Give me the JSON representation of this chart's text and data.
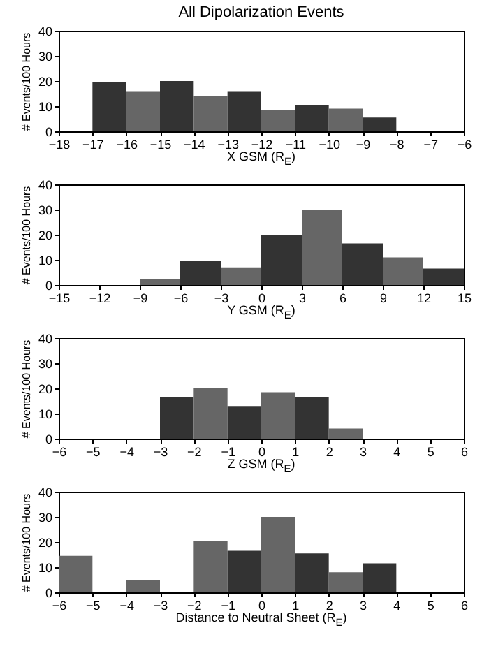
{
  "chart_data": [
    {
      "type": "histogram",
      "title": "All Dipolarization Events",
      "xlabel": "X GSM (R$_{E}$)",
      "ylabel": "# Events/100 Hours",
      "bins": [
        -17,
        -16,
        -15,
        -14,
        -13,
        -12,
        -11,
        -10,
        -9,
        -8
      ],
      "values": [
        19.5,
        16,
        20,
        14,
        16,
        8.5,
        10.5,
        9,
        5.5
      ],
      "colors": [
        "#333333",
        "#666666",
        "#333333",
        "#666666",
        "#333333",
        "#666666",
        "#333333",
        "#666666",
        "#333333"
      ],
      "xlim": [
        -18,
        -6
      ],
      "xticks": [
        -18,
        -17,
        -16,
        -15,
        -14,
        -13,
        -12,
        -11,
        -10,
        -9,
        -8,
        -7,
        -6
      ],
      "ylim": [
        0,
        40
      ],
      "yticks": [
        0,
        10,
        20,
        30,
        40
      ]
    },
    {
      "type": "histogram",
      "xlabel": "Y GSM (R$_{E}$)",
      "ylabel": "# Events/100 Hours",
      "bins": [
        -9,
        -6,
        -3,
        0,
        3,
        6,
        9,
        12,
        15
      ],
      "values": [
        2.5,
        9.5,
        7,
        20,
        30,
        16.5,
        11,
        6.5
      ],
      "colors": [
        "#666666",
        "#333333",
        "#666666",
        "#333333",
        "#666666",
        "#333333",
        "#666666",
        "#333333"
      ],
      "xlim": [
        -15,
        15
      ],
      "xticks": [
        -15,
        -12,
        -9,
        -6,
        -3,
        0,
        3,
        6,
        9,
        12,
        15
      ],
      "ylim": [
        0,
        40
      ],
      "yticks": [
        0,
        10,
        20,
        30,
        40
      ]
    },
    {
      "type": "histogram",
      "xlabel": "Z GSM (R$_{E}$)",
      "ylabel": "# Events/100 Hours",
      "bins": [
        -3,
        -2,
        -1,
        0,
        1,
        2,
        3
      ],
      "values": [
        16.5,
        20,
        13,
        18.5,
        16.5,
        4
      ],
      "colors": [
        "#333333",
        "#666666",
        "#333333",
        "#666666",
        "#333333",
        "#666666"
      ],
      "xlim": [
        -6,
        6
      ],
      "xticks": [
        -6,
        -5,
        -4,
        -3,
        -2,
        -1,
        0,
        1,
        2,
        3,
        4,
        5,
        6
      ],
      "ylim": [
        0,
        40
      ],
      "yticks": [
        0,
        10,
        20,
        30,
        40
      ]
    },
    {
      "type": "histogram",
      "xlabel": "Distance to Neutral Sheet (R$_{E}$)",
      "ylabel": "# Events/100 Hours",
      "bins": [
        -6,
        -5,
        -4,
        -3,
        -2,
        -1,
        0,
        1,
        2,
        3,
        4
      ],
      "values": [
        14.5,
        0,
        5,
        0,
        20.5,
        16.5,
        30,
        15.5,
        8,
        11.5
      ],
      "colors": [
        "#666666",
        "#333333",
        "#666666",
        "#333333",
        "#666666",
        "#333333",
        "#666666",
        "#333333",
        "#666666",
        "#333333"
      ],
      "xlim": [
        -6,
        6
      ],
      "xticks": [
        -6,
        -5,
        -4,
        -3,
        -2,
        -1,
        0,
        1,
        2,
        3,
        4,
        5,
        6
      ],
      "ylim": [
        0,
        40
      ],
      "yticks": [
        0,
        10,
        20,
        30,
        40
      ]
    }
  ]
}
